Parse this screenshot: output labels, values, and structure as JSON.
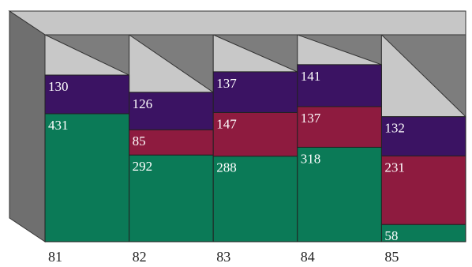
{
  "chart_data": {
    "type": "bar",
    "stacked": true,
    "three_d": true,
    "categories": [
      "81",
      "82",
      "83",
      "84",
      "85"
    ],
    "series": [
      {
        "values": [
          431,
          292,
          288,
          318,
          58
        ],
        "color": "#0b7a57"
      },
      {
        "values": [
          0,
          85,
          147,
          137,
          231
        ],
        "color": "#8e1b3f"
      },
      {
        "values": [
          130,
          126,
          137,
          141,
          132
        ],
        "color": "#3b1363"
      }
    ],
    "segment_labels": [
      [
        "431",
        "",
        "130"
      ],
      [
        "292",
        "85",
        "126"
      ],
      [
        "288",
        "147",
        "137"
      ],
      [
        "318",
        "137",
        "141"
      ],
      [
        "58",
        "231",
        "132"
      ]
    ],
    "title": "",
    "xlabel": "",
    "ylabel": "",
    "grid": false,
    "legend": "none",
    "colors": {
      "box_front": "#8a8a8a",
      "box_top": "#c6c6c6",
      "box_side": "#6f6f6f",
      "slot_back": "#c8c8c8",
      "slot_shadow": "#7d7d7d"
    }
  }
}
